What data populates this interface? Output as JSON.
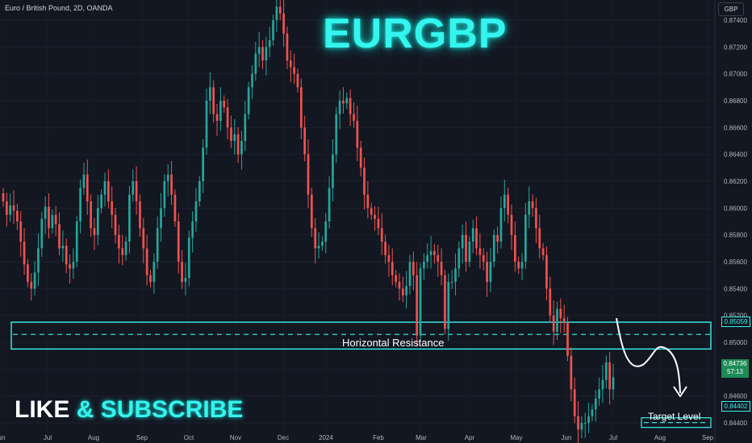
{
  "header": {
    "symbol_info": "Euro / British Pound, 2D, OANDA",
    "currency": "GBP"
  },
  "headline": "EURGBP",
  "branding": {
    "like": "LIKE",
    "amp": "&",
    "subscribe": "SUBSCRIBE"
  },
  "annotations": {
    "resistance_label": "Horizontal Resistance",
    "target_label": "Target Level",
    "resistance_price": "0.85059",
    "target_price": "0.84402",
    "last_price": "0.84736",
    "countdown": "57:13"
  },
  "colors": {
    "up": "#26a69a",
    "down": "#ef5350",
    "accent": "#34f5ee",
    "background": "#131722",
    "text": "#d1d4dc"
  },
  "chart_data": {
    "type": "candlestick",
    "symbol": "EURGBP",
    "timeframe": "2D",
    "ylim": [
      0.8425,
      0.8755
    ],
    "y_ticks": [
      "0.87400",
      "0.87200",
      "0.87000",
      "0.86800",
      "0.86600",
      "0.86400",
      "0.86200",
      "0.86000",
      "0.85800",
      "0.85600",
      "0.85400",
      "0.85200",
      "0.85000",
      "0.84800",
      "0.84600",
      "0.84400"
    ],
    "x_ticks": [
      "Jun",
      "Jul",
      "Aug",
      "Sep",
      "Oct",
      "Nov",
      "Dec",
      "2024",
      "Feb",
      "Mar",
      "Apr",
      "May",
      "Jun",
      "Jul",
      "Aug",
      "Sep"
    ],
    "close": [
      0.8605,
      0.8595,
      0.8602,
      0.8598,
      0.859,
      0.8575,
      0.8558,
      0.8545,
      0.854,
      0.8552,
      0.857,
      0.8592,
      0.8601,
      0.8585,
      0.8595,
      0.8588,
      0.857,
      0.8572,
      0.8558,
      0.8555,
      0.856,
      0.859,
      0.8615,
      0.8625,
      0.8605,
      0.8585,
      0.858,
      0.86,
      0.861,
      0.862,
      0.8605,
      0.8595,
      0.858,
      0.857,
      0.8565,
      0.8575,
      0.861,
      0.862,
      0.8605,
      0.8585,
      0.857,
      0.855,
      0.8545,
      0.856,
      0.8585,
      0.86,
      0.862,
      0.8625,
      0.861,
      0.859,
      0.856,
      0.8545,
      0.8548,
      0.8578,
      0.859,
      0.8605,
      0.862,
      0.8645,
      0.868,
      0.869,
      0.867,
      0.8665,
      0.868,
      0.8675,
      0.866,
      0.865,
      0.8655,
      0.864,
      0.865,
      0.867,
      0.869,
      0.87,
      0.8715,
      0.872,
      0.871,
      0.872,
      0.8725,
      0.874,
      0.875,
      0.8745,
      0.873,
      0.871,
      0.8705,
      0.87,
      0.869,
      0.866,
      0.864,
      0.861,
      0.8585,
      0.857,
      0.8572,
      0.8575,
      0.859,
      0.8615,
      0.864,
      0.867,
      0.868,
      0.8678,
      0.8682,
      0.867,
      0.8665,
      0.8645,
      0.863,
      0.861,
      0.86,
      0.8595,
      0.8592,
      0.8585,
      0.8575,
      0.8565,
      0.856,
      0.855,
      0.8545,
      0.854,
      0.8535,
      0.8542,
      0.856,
      0.855,
      0.8505,
      0.8555,
      0.856,
      0.8565,
      0.8568,
      0.8565,
      0.856,
      0.855,
      0.851,
      0.8545,
      0.8545,
      0.8555,
      0.857,
      0.858,
      0.856,
      0.8575,
      0.8585,
      0.857,
      0.8565,
      0.856,
      0.8545,
      0.856,
      0.858,
      0.8575,
      0.86,
      0.861,
      0.8595,
      0.858,
      0.856,
      0.8555,
      0.856,
      0.8595,
      0.8605,
      0.86,
      0.8585,
      0.857,
      0.8565,
      0.854,
      0.852,
      0.8508,
      0.8525,
      0.8518,
      0.8515,
      0.849,
      0.8465,
      0.8445,
      0.8435,
      0.844,
      0.844,
      0.8445,
      0.845,
      0.8458,
      0.8465,
      0.8472,
      0.8485,
      0.8465,
      0.8474
    ],
    "resistance_zone": [
      0.8495,
      0.8515
    ],
    "resistance_level": 0.85059,
    "target_level": 0.84402,
    "last_price": 0.84736
  }
}
